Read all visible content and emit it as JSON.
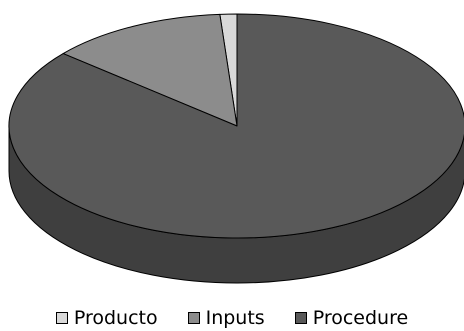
{
  "chart_data": {
    "type": "pie",
    "style": "3d",
    "title": "",
    "start": "top",
    "direction": "counterclockwise",
    "legend_position": "bottom",
    "series": [
      {
        "name": "Producto",
        "value": 1.2,
        "color": "#d9d9d9",
        "side_color": "#a8a8a8"
      },
      {
        "name": "Inputs",
        "value": 12.6,
        "color": "#8c8c8c",
        "side_color": "#6a6a6a"
      },
      {
        "name": "Procedure",
        "value": 86.2,
        "color": "#595959",
        "side_color": "#3f3f3f"
      }
    ]
  }
}
